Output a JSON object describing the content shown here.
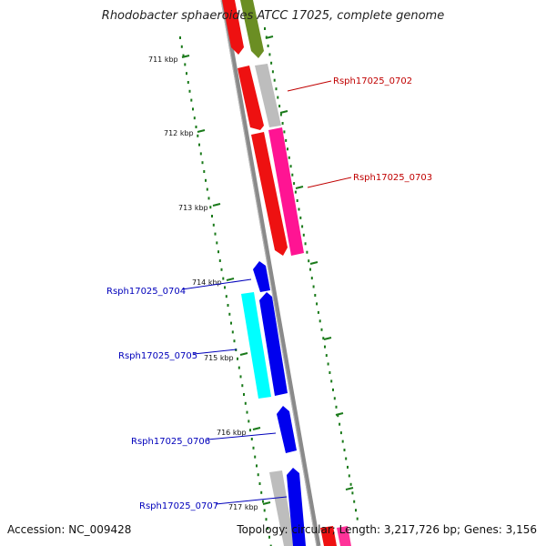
{
  "title": "Rhodobacter sphaeroides ATCC 17025, complete genome",
  "footer": {
    "accession_label": "Accession: NC_009428",
    "summary": "Topology: circular; Length: 3,217,726 bp; Genes: 3,156"
  },
  "colors": {
    "forward_label": "#c00000",
    "reverse_label": "#0000bb",
    "tick": "#1a7a1a",
    "backbone": "#808080"
  },
  "ruler": [
    {
      "label": "711 kbp"
    },
    {
      "label": "712 kbp"
    },
    {
      "label": "713 kbp"
    },
    {
      "label": "714 kbp"
    },
    {
      "label": "715 kbp"
    },
    {
      "label": "716 kbp"
    },
    {
      "label": "717 kbp"
    }
  ],
  "gene_labels": [
    {
      "text": "Rsph17025_0702",
      "strand": "forward"
    },
    {
      "text": "Rsph17025_0703",
      "strand": "forward"
    },
    {
      "text": "Rsph17025_0704",
      "strand": "reverse"
    },
    {
      "text": "Rsph17025_0705",
      "strand": "reverse"
    },
    {
      "text": "Rsph17025_0706",
      "strand": "reverse"
    },
    {
      "text": "Rsph17025_0707",
      "strand": "reverse"
    }
  ]
}
